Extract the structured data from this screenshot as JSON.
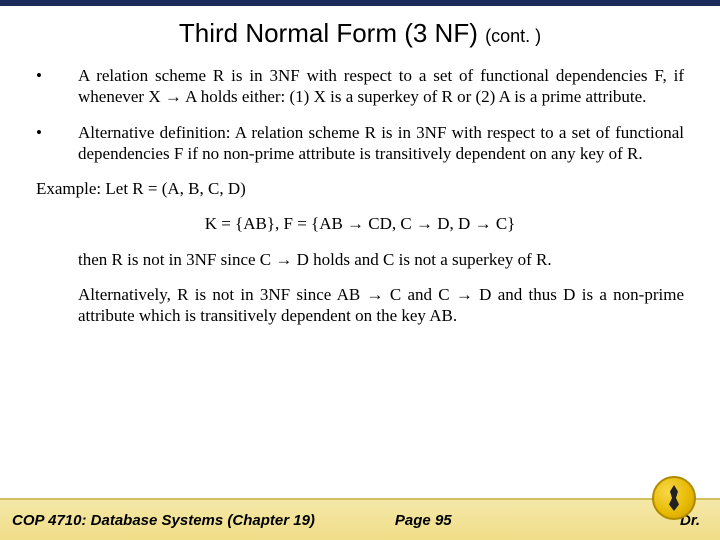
{
  "title_main": "Third Normal Form (3 NF)",
  "title_cont": "(cont. )",
  "bullets": [
    "A relation scheme R is in 3NF with respect to a set of functional dependencies F, if whenever X → A holds either: (1) X is a superkey of R or (2) A is a prime attribute.",
    "Alternative definition:  A relation scheme R is in 3NF with respect to a set of functional dependencies F if no non-prime attribute is transitively dependent on any key of R."
  ],
  "example_intro": "Example:  Let R = (A, B, C, D)",
  "example_formula": "K = {AB}, F = {AB → CD,  C → D,  D → C}",
  "example_conc1": "then R is not in 3NF since C → D holds and C is not a superkey of R.",
  "example_conc2": "Alternatively, R is not in 3NF since AB → C and C  → D and thus D is a non-prime attribute which is transitively dependent on the key AB.",
  "footer_course": "COP 4710: Database Systems  (Chapter 19)",
  "footer_page": "Page 95",
  "footer_author": "Dr.",
  "colors": {
    "top_bar": "#1a2a5a",
    "footer_bg_top": "#f5e8a8",
    "footer_bg_bottom": "#f0dd88",
    "footer_border": "#d4c060",
    "logo_gold": "#e6b800"
  },
  "fonts": {
    "title_family": "Arial",
    "title_size_pt": 20,
    "body_family": "Times New Roman",
    "body_size_pt": 13,
    "footer_family": "Arial",
    "footer_size_pt": 11
  }
}
